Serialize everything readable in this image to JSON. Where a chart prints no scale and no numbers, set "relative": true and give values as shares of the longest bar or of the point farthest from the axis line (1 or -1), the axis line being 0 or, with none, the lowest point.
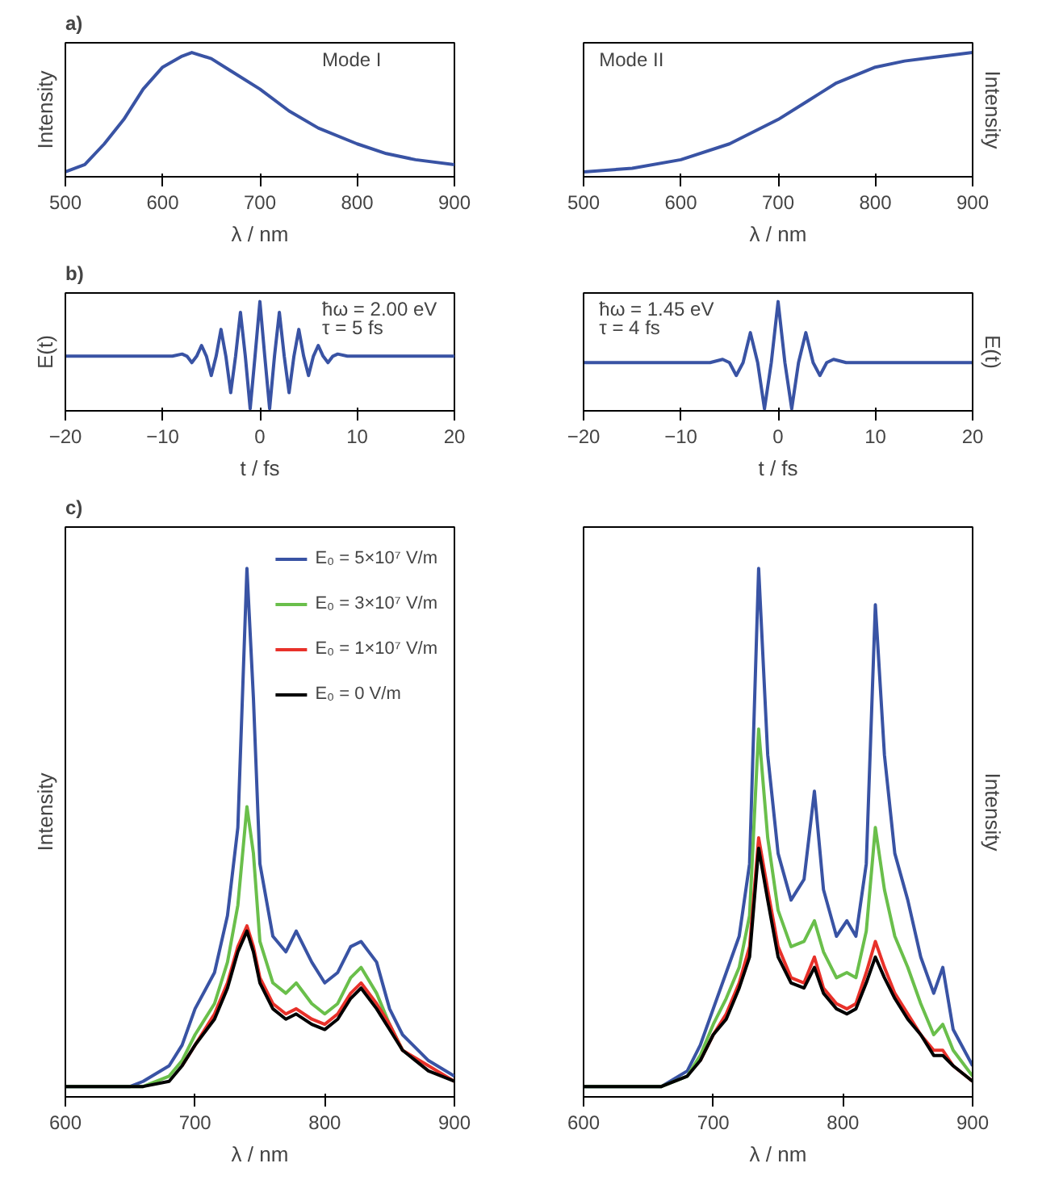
{
  "chart_data": [
    {
      "type": "line",
      "title": "a)",
      "xlabel": "λ / nm",
      "ylabel": "Intensity",
      "relative": true,
      "tick_labels": "x",
      "xlim": [
        500,
        900
      ],
      "xticks": [
        500,
        600,
        700,
        800,
        900
      ],
      "annotations": [
        "Mode I"
      ],
      "series": [
        {
          "color": "#3953a4",
          "x": [
            500,
            520,
            540,
            560,
            580,
            600,
            620,
            630,
            650,
            670,
            700,
            730,
            760,
            800,
            830,
            860,
            900
          ],
          "values": [
            0.02,
            0.08,
            0.25,
            0.45,
            0.7,
            0.88,
            0.97,
            1.0,
            0.95,
            0.85,
            0.7,
            0.52,
            0.38,
            0.25,
            0.17,
            0.12,
            0.08
          ]
        }
      ]
    },
    {
      "type": "line",
      "xlabel": "λ / nm",
      "y2label": "Intensity",
      "relative": true,
      "tick_labels": "x",
      "xlim": [
        500,
        900
      ],
      "xticks": [
        500,
        600,
        700,
        800,
        900
      ],
      "annotations": [
        "Mode II"
      ],
      "series": [
        {
          "color": "#3953a4",
          "x": [
            500,
            550,
            600,
            650,
            700,
            730,
            760,
            800,
            830,
            860,
            900
          ],
          "values": [
            0.02,
            0.05,
            0.12,
            0.25,
            0.45,
            0.6,
            0.75,
            0.88,
            0.93,
            0.96,
            1.0
          ]
        }
      ]
    },
    {
      "type": "line",
      "title": "b)",
      "xlabel": "t / fs",
      "ylabel": "E(t)",
      "relative": true,
      "tick_labels": "x",
      "xlim": [
        -20,
        20
      ],
      "xticks": [
        -20,
        -10,
        0,
        10,
        20
      ],
      "annotations": [
        "ħω = 2.00 eV",
        "τ = 5 fs"
      ],
      "series": [
        {
          "color": "#3953a4",
          "x": [
            -20,
            -9,
            -8,
            -7.5,
            -7,
            -6.5,
            -6,
            -5.5,
            -5,
            -4.5,
            -4,
            -3.5,
            -3,
            -2.5,
            -2,
            -1.5,
            -1,
            -0.5,
            0,
            0.5,
            1,
            1.5,
            2,
            2.5,
            3,
            3.5,
            4,
            4.5,
            5,
            5.5,
            6,
            6.5,
            7,
            7.5,
            8,
            9,
            20
          ],
          "values": [
            0.49,
            0.49,
            0.51,
            0.49,
            0.43,
            0.49,
            0.59,
            0.49,
            0.31,
            0.49,
            0.74,
            0.49,
            0.15,
            0.49,
            0.9,
            0.49,
            0,
            0.49,
            1.0,
            0.49,
            0,
            0.49,
            0.9,
            0.49,
            0.15,
            0.49,
            0.74,
            0.49,
            0.31,
            0.49,
            0.59,
            0.49,
            0.43,
            0.49,
            0.51,
            0.49,
            0.49
          ]
        }
      ]
    },
    {
      "type": "line",
      "xlabel": "t / fs",
      "y2label": "E(t)",
      "relative": true,
      "tick_labels": "x",
      "xlim": [
        -20,
        20
      ],
      "xticks": [
        -20,
        -10,
        0,
        10,
        20
      ],
      "annotations": [
        "ħω = 1.45 eV",
        "τ = 4 fs"
      ],
      "series": [
        {
          "color": "#3953a4",
          "x": [
            -20,
            -7,
            -5.7,
            -5,
            -4.3,
            -3.6,
            -2.85,
            -2.1,
            -1.4,
            -0.7,
            0,
            0.7,
            1.4,
            2.1,
            2.85,
            3.6,
            4.3,
            5,
            5.7,
            7,
            20
          ],
          "values": [
            0.43,
            0.43,
            0.46,
            0.43,
            0.31,
            0.43,
            0.71,
            0.43,
            0,
            0.43,
            1.0,
            0.43,
            0,
            0.43,
            0.71,
            0.43,
            0.31,
            0.43,
            0.46,
            0.43,
            0.43
          ]
        }
      ]
    },
    {
      "type": "line",
      "title": "c)",
      "xlabel": "λ / nm",
      "ylabel": "Intensity",
      "relative": true,
      "tick_labels": "x",
      "legend": "top right",
      "xlim": [
        600,
        900
      ],
      "xticks": [
        600,
        700,
        800,
        900
      ],
      "x": [
        600,
        650,
        660,
        680,
        690,
        700,
        715,
        725,
        733,
        740,
        745,
        750,
        760,
        770,
        778,
        790,
        800,
        810,
        820,
        828,
        840,
        850,
        860,
        880,
        900
      ],
      "series": [
        {
          "name": "E₀ = 5×10⁷ V/m",
          "color": "#3953a4",
          "values": [
            0,
            0,
            0.01,
            0.04,
            0.08,
            0.15,
            0.22,
            0.33,
            0.5,
            1.0,
            0.75,
            0.43,
            0.29,
            0.26,
            0.3,
            0.24,
            0.2,
            0.22,
            0.27,
            0.28,
            0.24,
            0.15,
            0.1,
            0.05,
            0.02
          ]
        },
        {
          "name": "E₀ = 3×10⁷ V/m",
          "color": "#6abf4b",
          "values": [
            0,
            0,
            0.0,
            0.02,
            0.05,
            0.1,
            0.16,
            0.24,
            0.35,
            0.54,
            0.45,
            0.28,
            0.2,
            0.18,
            0.2,
            0.16,
            0.14,
            0.16,
            0.21,
            0.23,
            0.18,
            0.12,
            0.07,
            null,
            null
          ]
        },
        {
          "name": "E₀ = 1×10⁷ V/m",
          "color": "#e8312a",
          "values": [
            null,
            null,
            null,
            null,
            0.04,
            0.08,
            0.14,
            0.2,
            0.27,
            0.31,
            0.27,
            0.21,
            0.16,
            0.14,
            0.15,
            0.13,
            0.12,
            0.14,
            0.18,
            0.2,
            0.16,
            0.12,
            0.07,
            0.04,
            0.01
          ]
        },
        {
          "name": "E₀ = 0 V/m",
          "color": "#000000",
          "values": [
            0,
            0,
            0.0,
            0.01,
            0.04,
            0.08,
            0.13,
            0.19,
            0.26,
            0.3,
            0.26,
            0.2,
            0.15,
            0.13,
            0.14,
            0.12,
            0.11,
            0.13,
            0.17,
            0.19,
            0.15,
            0.11,
            0.07,
            0.03,
            0.01
          ]
        }
      ]
    },
    {
      "type": "line",
      "xlabel": "λ / nm",
      "y2label": "Intensity",
      "relative": true,
      "tick_labels": "x",
      "xlim": [
        600,
        900
      ],
      "xticks": [
        600,
        700,
        800,
        900
      ],
      "x": [
        600,
        660,
        680,
        690,
        700,
        710,
        720,
        728,
        735,
        742,
        750,
        760,
        770,
        778,
        785,
        795,
        803,
        810,
        818,
        825,
        832,
        840,
        850,
        860,
        870,
        877,
        885,
        900
      ],
      "series": [
        {
          "color": "#3953a4",
          "values": [
            0,
            0,
            0.03,
            0.08,
            0.15,
            0.22,
            0.29,
            0.43,
            1.0,
            0.64,
            0.45,
            0.36,
            0.4,
            0.57,
            0.38,
            0.29,
            0.32,
            0.29,
            0.43,
            0.93,
            0.64,
            0.45,
            0.36,
            0.25,
            0.18,
            0.23,
            0.11,
            0.04
          ]
        },
        {
          "color": "#6abf4b",
          "values": [
            0,
            0,
            0.02,
            0.06,
            0.12,
            0.17,
            0.23,
            0.33,
            0.69,
            0.48,
            0.34,
            0.27,
            0.28,
            0.32,
            0.26,
            0.21,
            0.22,
            0.21,
            0.3,
            0.5,
            0.38,
            0.29,
            0.23,
            0.16,
            0.1,
            0.12,
            0.07,
            0.02
          ]
        },
        {
          "color": "#e8312a",
          "values": [
            null,
            null,
            null,
            0.05,
            0.1,
            0.14,
            0.2,
            0.27,
            0.48,
            0.38,
            0.27,
            0.21,
            0.2,
            0.25,
            0.19,
            0.16,
            0.15,
            0.16,
            0.22,
            0.28,
            0.23,
            0.18,
            0.14,
            0.1,
            0.07,
            0.07,
            0.04,
            0.01
          ]
        },
        {
          "color": "#000000",
          "values": [
            0,
            0,
            0.02,
            0.05,
            0.1,
            0.13,
            0.19,
            0.25,
            0.46,
            0.36,
            0.25,
            0.2,
            0.19,
            0.23,
            0.18,
            0.15,
            0.14,
            0.15,
            0.2,
            0.25,
            0.21,
            0.17,
            0.13,
            0.1,
            0.06,
            0.06,
            0.04,
            0.01
          ]
        }
      ]
    }
  ]
}
